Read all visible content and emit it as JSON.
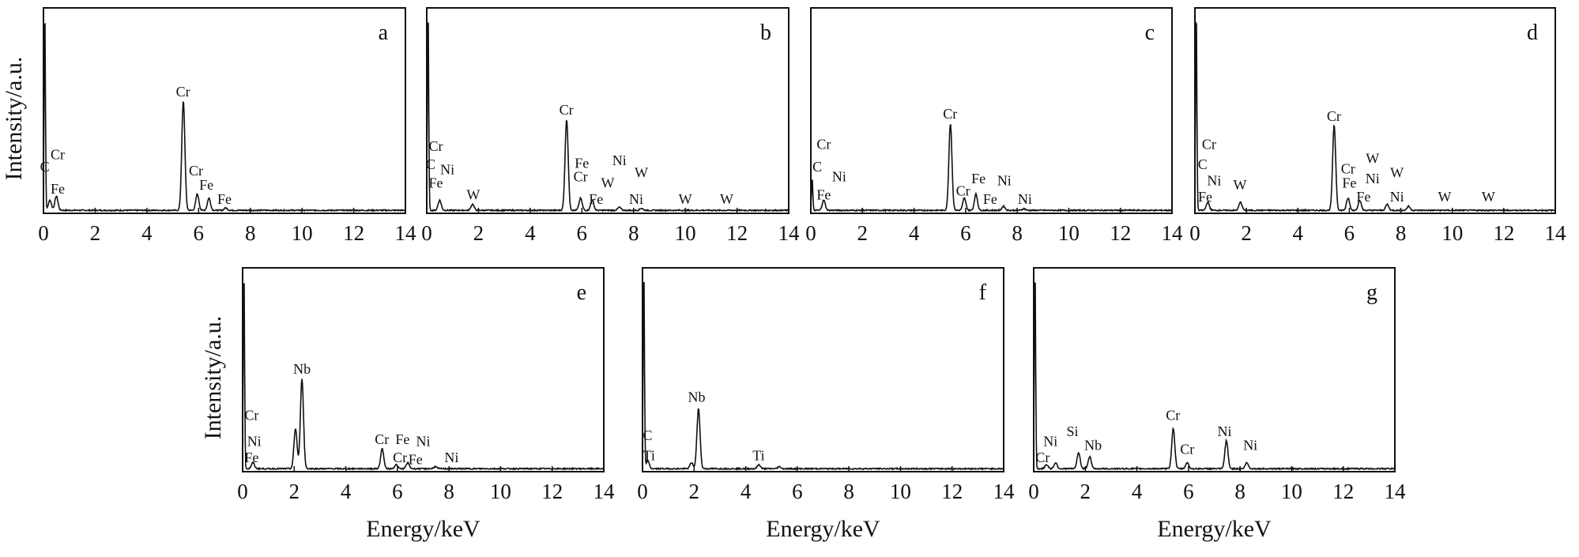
{
  "chart_data": [
    {
      "type": "line",
      "panel": "a",
      "xlim": [
        0,
        14
      ],
      "xticks": [
        "0",
        "2",
        "4",
        "6",
        "8",
        "10",
        "12",
        "14"
      ],
      "xlabel": "",
      "ylabel": "Intensity/a.u.",
      "peaks": [
        [
          0.05,
          1.0
        ],
        [
          0.25,
          0.05
        ],
        [
          0.5,
          0.07
        ],
        [
          5.41,
          0.54
        ],
        [
          5.95,
          0.08
        ],
        [
          6.4,
          0.06
        ],
        [
          7.05,
          0.012
        ]
      ],
      "labels": [
        [
          "C",
          0.05,
          0.2
        ],
        [
          "Cr",
          0.55,
          0.26
        ],
        [
          "Fe",
          0.55,
          0.09
        ],
        [
          "Cr",
          5.4,
          0.57
        ],
        [
          "Cr",
          5.9,
          0.18
        ],
        [
          "Fe",
          6.3,
          0.11
        ],
        [
          "Fe",
          7.0,
          0.04
        ]
      ]
    },
    {
      "type": "line",
      "panel": "b",
      "xlim": [
        0,
        14
      ],
      "xticks": [
        "0",
        "2",
        "4",
        "6",
        "8",
        "10",
        "12",
        "14"
      ],
      "xlabel": "",
      "ylabel": "",
      "peaks": [
        [
          0.05,
          1.0
        ],
        [
          0.5,
          0.05
        ],
        [
          1.77,
          0.03
        ],
        [
          5.41,
          0.45
        ],
        [
          5.95,
          0.06
        ],
        [
          6.4,
          0.05
        ],
        [
          7.45,
          0.015
        ],
        [
          8.3,
          0.01
        ]
      ],
      "labels": [
        [
          "Cr",
          0.35,
          0.3
        ],
        [
          "C",
          0.15,
          0.21
        ],
        [
          "Fe",
          0.35,
          0.12
        ],
        [
          "Ni",
          0.8,
          0.06
        ],
        [
          "W",
          1.8,
          0.06
        ],
        [
          "Cr",
          5.4,
          0.48
        ],
        [
          "Cr",
          5.95,
          0.15
        ],
        [
          "Fe",
          6.0,
          0.1
        ],
        [
          "Fe",
          6.55,
          0.04
        ],
        [
          "W",
          7.0,
          0.12
        ],
        [
          "Ni",
          7.45,
          0.23
        ],
        [
          "W",
          8.3,
          0.17
        ],
        [
          "Ni",
          8.1,
          0.04
        ],
        [
          "W",
          10.0,
          0.04
        ],
        [
          "W",
          11.6,
          0.04
        ]
      ]
    },
    {
      "type": "line",
      "panel": "c",
      "xlim": [
        0,
        14
      ],
      "xticks": [
        "0",
        "2",
        "4",
        "6",
        "8",
        "10",
        "12",
        "14"
      ],
      "xlabel": "",
      "ylabel": "",
      "peaks": [
        [
          0.05,
          0.16
        ],
        [
          0.5,
          0.05
        ],
        [
          5.41,
          0.43
        ],
        [
          5.95,
          0.06
        ],
        [
          6.4,
          0.08
        ],
        [
          7.47,
          0.02
        ],
        [
          8.26,
          0.008
        ]
      ],
      "labels": [
        [
          "Cr",
          0.5,
          0.31
        ],
        [
          "C",
          0.25,
          0.2
        ],
        [
          "Ni",
          1.1,
          0.15
        ],
        [
          "Fe",
          0.5,
          0.06
        ],
        [
          "Cr",
          5.4,
          0.46
        ],
        [
          "Cr",
          5.9,
          0.08
        ],
        [
          "Fe",
          6.5,
          0.14
        ],
        [
          "Fe",
          6.95,
          0.04
        ],
        [
          "Ni",
          7.5,
          0.13
        ],
        [
          "Ni",
          8.3,
          0.04
        ]
      ]
    },
    {
      "type": "line",
      "panel": "d",
      "xlim": [
        0,
        14
      ],
      "xticks": [
        "0",
        "2",
        "4",
        "6",
        "8",
        "10",
        "12",
        "14"
      ],
      "xlabel": "",
      "ylabel": "",
      "peaks": [
        [
          0.05,
          1.0
        ],
        [
          0.5,
          0.04
        ],
        [
          1.77,
          0.04
        ],
        [
          5.41,
          0.42
        ],
        [
          5.95,
          0.06
        ],
        [
          6.4,
          0.05
        ],
        [
          7.47,
          0.03
        ],
        [
          8.3,
          0.02
        ]
      ],
      "labels": [
        [
          "Cr",
          0.55,
          0.31
        ],
        [
          "C",
          0.3,
          0.21
        ],
        [
          "Ni",
          0.75,
          0.13
        ],
        [
          "W",
          1.75,
          0.11
        ],
        [
          "Fe",
          0.4,
          0.05
        ],
        [
          "Cr",
          5.4,
          0.45
        ],
        [
          "Cr",
          5.95,
          0.19
        ],
        [
          "Fe",
          6.0,
          0.12
        ],
        [
          "Fe",
          6.55,
          0.05
        ],
        [
          "W",
          6.9,
          0.24
        ],
        [
          "Ni",
          6.9,
          0.14
        ],
        [
          "W",
          7.85,
          0.17
        ],
        [
          "Ni",
          7.85,
          0.05
        ],
        [
          "W",
          9.7,
          0.05
        ],
        [
          "W",
          11.4,
          0.05
        ]
      ]
    },
    {
      "type": "line",
      "panel": "e",
      "xlim": [
        0,
        14
      ],
      "xticks": [
        "0",
        "2",
        "4",
        "6",
        "8",
        "10",
        "12",
        "14"
      ],
      "xlabel": "Energy/keV",
      "ylabel": "Intensity/a.u.",
      "peaks": [
        [
          0.05,
          1.0
        ],
        [
          0.4,
          0.03
        ],
        [
          2.3,
          0.45
        ],
        [
          2.05,
          0.2
        ],
        [
          5.41,
          0.1
        ],
        [
          5.95,
          0.02
        ],
        [
          6.4,
          0.03
        ],
        [
          7.47,
          0.01
        ]
      ],
      "labels": [
        [
          "Cr",
          0.35,
          0.25
        ],
        [
          "Ni",
          0.45,
          0.12
        ],
        [
          "Fe",
          0.35,
          0.04
        ],
        [
          "Nb",
          2.3,
          0.48
        ],
        [
          "Cr",
          5.4,
          0.13
        ],
        [
          "Fe",
          6.2,
          0.13
        ],
        [
          "Ni",
          7.0,
          0.12
        ],
        [
          "Cr",
          6.1,
          0.04
        ],
        [
          "Fe",
          6.7,
          0.03
        ],
        [
          "Ni",
          8.1,
          0.04
        ]
      ]
    },
    {
      "type": "line",
      "panel": "f",
      "xlim": [
        0,
        14
      ],
      "xticks": [
        "0",
        "2",
        "4",
        "6",
        "8",
        "10",
        "12",
        "14"
      ],
      "xlabel": "Energy/keV",
      "ylabel": "",
      "peaks": [
        [
          0.05,
          1.0
        ],
        [
          0.2,
          0.04
        ],
        [
          2.17,
          0.3
        ],
        [
          1.9,
          0.03
        ],
        [
          4.51,
          0.02
        ],
        [
          5.3,
          0.01
        ]
      ],
      "labels": [
        [
          "C",
          0.2,
          0.15
        ],
        [
          "Ti",
          0.25,
          0.05
        ],
        [
          "Nb",
          2.1,
          0.34
        ],
        [
          "Ti",
          4.5,
          0.05
        ]
      ]
    },
    {
      "type": "line",
      "panel": "g",
      "xlim": [
        0,
        14
      ],
      "xticks": [
        "0",
        "2",
        "4",
        "6",
        "8",
        "10",
        "12",
        "14"
      ],
      "xlabel": "Energy/keV",
      "ylabel": "",
      "peaks": [
        [
          0.05,
          1.0
        ],
        [
          0.5,
          0.02
        ],
        [
          0.85,
          0.03
        ],
        [
          1.74,
          0.08
        ],
        [
          2.17,
          0.06
        ],
        [
          5.41,
          0.2
        ],
        [
          5.95,
          0.03
        ],
        [
          7.47,
          0.14
        ],
        [
          8.26,
          0.03
        ]
      ],
      "labels": [
        [
          "Ni",
          0.65,
          0.12
        ],
        [
          "Cr",
          0.35,
          0.04
        ],
        [
          "Si",
          1.5,
          0.17
        ],
        [
          "Nb",
          2.3,
          0.1
        ],
        [
          "Cr",
          5.4,
          0.25
        ],
        [
          "Cr",
          5.95,
          0.08
        ],
        [
          "Ni",
          7.4,
          0.17
        ],
        [
          "Ni",
          8.4,
          0.1
        ]
      ]
    }
  ]
}
